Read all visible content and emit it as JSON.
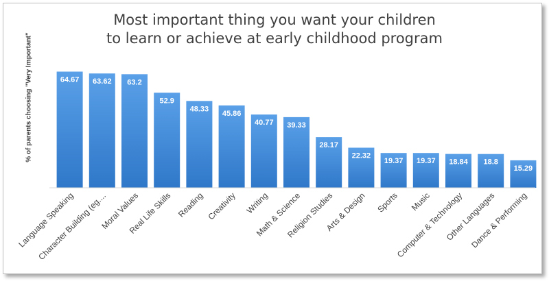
{
  "chart_data": {
    "type": "bar",
    "title_lines": [
      "Most important thing you want your children",
      "to learn or achieve at early childhood program"
    ],
    "xlabel": "",
    "ylabel": "% of parents choosing \"Very Important\"",
    "ylim": [
      0,
      74
    ],
    "grid": false,
    "legend": "none",
    "bar_color": "#3d85d6",
    "categories": [
      "Language Speaking",
      "Character Building (eg....",
      "Moral Values",
      "Real Life Skills",
      "Reading",
      "Creativity",
      "Writing",
      "Math & Science",
      "Religion Studies",
      "Arts & Design",
      "Sports",
      "Music",
      "Computer & Technology",
      "Other Languages",
      "Dance & Performing"
    ],
    "values": [
      64.67,
      63.62,
      63.2,
      52.9,
      48.33,
      45.86,
      40.77,
      39.33,
      28.17,
      22.32,
      19.37,
      19.37,
      18.84,
      18.8,
      15.29
    ]
  }
}
